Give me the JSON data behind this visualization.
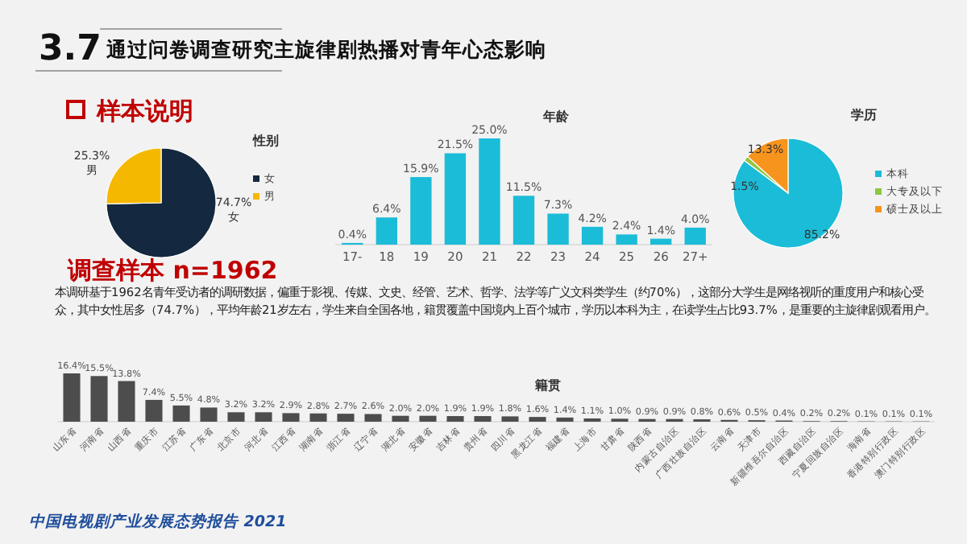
{
  "chart_data": [
    {
      "type": "other",
      "title": "3.7",
      "subtitle": "通过问卷调查研究主旋律剧热播对青年心态影响",
      "annotations": [
        "样本说明",
        "调查样本 n=1962",
        "本调研基于1962名青年受访者的调研数据，偏重于影视、传媒、文史、经管、艺术、哲学、法学等广义文科类学生（约70%），这部分大学生是网络视听的重度用户和核心受众，其中女性居多（74.7%），平均年龄21岁左右，学生来自全国各地，籍贯覆盖中国境内上百个城市，学历以本科为主，在读学生占比93.7%，是重要的主旋律剧观看用户。",
        "中国电视剧产业发展态势报告 2021"
      ]
    },
    {
      "type": "pie",
      "title": "性别",
      "categories": [
        "女",
        "男"
      ],
      "values": [
        74.7,
        25.3
      ],
      "colors": [
        "#14293f",
        "#f5b800"
      ],
      "value_labels": [
        "74.7%",
        "25.3%"
      ],
      "legend": "right"
    },
    {
      "type": "bar",
      "title": "年龄",
      "categories": [
        "17-",
        "18",
        "19",
        "20",
        "21",
        "22",
        "23",
        "24",
        "25",
        "26",
        "27+"
      ],
      "values": [
        0.4,
        6.4,
        15.9,
        21.5,
        25.0,
        11.5,
        7.3,
        4.2,
        2.4,
        1.4,
        4.0
      ],
      "color": "#1bbcd8",
      "value_labels": [
        "0.4%",
        "6.4%",
        "15.9%",
        "21.5%",
        "25.0%",
        "11.5%",
        "7.3%",
        "4.2%",
        "2.4%",
        "1.4%",
        "4.0%"
      ]
    },
    {
      "type": "pie",
      "title": "学历",
      "categories": [
        "本科",
        "大专及以下",
        "硕士及以上"
      ],
      "values": [
        85.2,
        1.5,
        13.3
      ],
      "colors": [
        "#1bbcd8",
        "#8dc63f",
        "#f7941d"
      ],
      "value_labels": [
        "85.2%",
        "1.5%",
        "13.3%"
      ],
      "legend": "right"
    },
    {
      "type": "bar",
      "title": "籍贯",
      "categories": [
        "山东省",
        "河南省",
        "山西省",
        "重庆市",
        "江苏省",
        "广东省",
        "北京市",
        "河北省",
        "江西省",
        "湖南省",
        "浙江省",
        "辽宁省",
        "湖北省",
        "安徽省",
        "吉林省",
        "贵州省",
        "四川省",
        "黑龙江省",
        "福建省",
        "上海市",
        "甘肃省",
        "陕西省",
        "内蒙古自治区",
        "广西壮族自治区",
        "云南省",
        "天津市",
        "新疆维吾尔自治区",
        "西藏自治区",
        "宁夏回族自治区",
        "海南省",
        "香港特别行政区",
        "澳门特别行政区"
      ],
      "values": [
        16.4,
        15.5,
        13.8,
        7.4,
        5.5,
        4.8,
        3.2,
        3.2,
        2.9,
        2.8,
        2.7,
        2.6,
        2.0,
        2.0,
        1.9,
        1.9,
        1.8,
        1.6,
        1.4,
        1.1,
        1.0,
        0.9,
        0.9,
        0.8,
        0.6,
        0.5,
        0.4,
        0.2,
        0.2,
        0.1,
        0.1,
        0.1
      ],
      "color": "#4d4d4d",
      "value_labels": [
        "16.4%",
        "15.5%",
        "13.8%",
        "7.4%",
        "5.5%",
        "4.8%",
        "3.2%",
        "3.2%",
        "2.9%",
        "2.8%",
        "2.7%",
        "2.6%",
        "2.0%",
        "2.0%",
        "1.9%",
        "1.9%",
        "1.8%",
        "1.6%",
        "1.4%",
        "1.1%",
        "1.0%",
        "0.9%",
        "0.9%",
        "0.8%",
        "0.6%",
        "0.5%",
        "0.4%",
        "0.2%",
        "0.2%",
        "0.1%",
        "0.1%",
        "0.1%"
      ]
    }
  ]
}
